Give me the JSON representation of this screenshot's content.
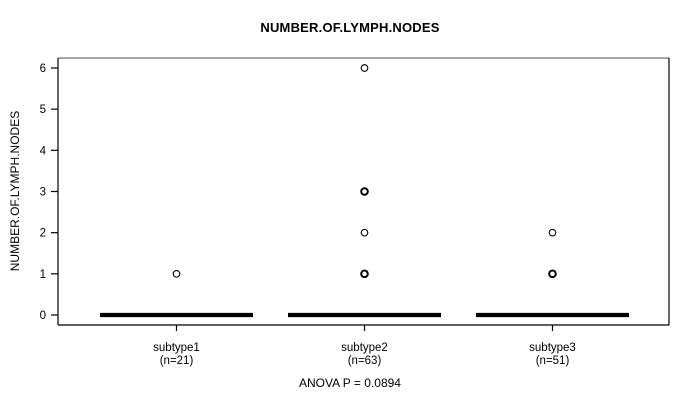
{
  "chart_data": {
    "type": "boxplot",
    "title": "NUMBER.OF.LYMPH.NODES",
    "ylabel": "NUMBER.OF.LYMPH.NODES",
    "footer": "ANOVA P = 0.0894",
    "anova_p": "0.0894",
    "ylim": [
      -0.24,
      6.24
    ],
    "yticks": [
      0,
      1,
      2,
      3,
      4,
      5,
      6
    ],
    "grid": false,
    "groups": [
      {
        "label": "subtype1",
        "n_label": "(n=21)",
        "n": 21,
        "median": 0,
        "box_low": 0,
        "box_high": 0,
        "outliers": [
          {
            "value": 1,
            "bold": false
          }
        ]
      },
      {
        "label": "subtype2",
        "n_label": "(n=63)",
        "n": 63,
        "median": 0,
        "box_low": 0,
        "box_high": 0,
        "outliers": [
          {
            "value": 6,
            "bold": false
          },
          {
            "value": 3,
            "bold": true
          },
          {
            "value": 2,
            "bold": false
          },
          {
            "value": 1,
            "bold": true
          }
        ]
      },
      {
        "label": "subtype3",
        "n_label": "(n=51)",
        "n": 51,
        "median": 0,
        "box_low": 0,
        "box_high": 0,
        "outliers": [
          {
            "value": 2,
            "bold": false
          },
          {
            "value": 1,
            "bold": true
          }
        ]
      }
    ]
  },
  "colors": {
    "foreground": "#000000",
    "frame_top": "#888888",
    "background": "#ffffff"
  }
}
